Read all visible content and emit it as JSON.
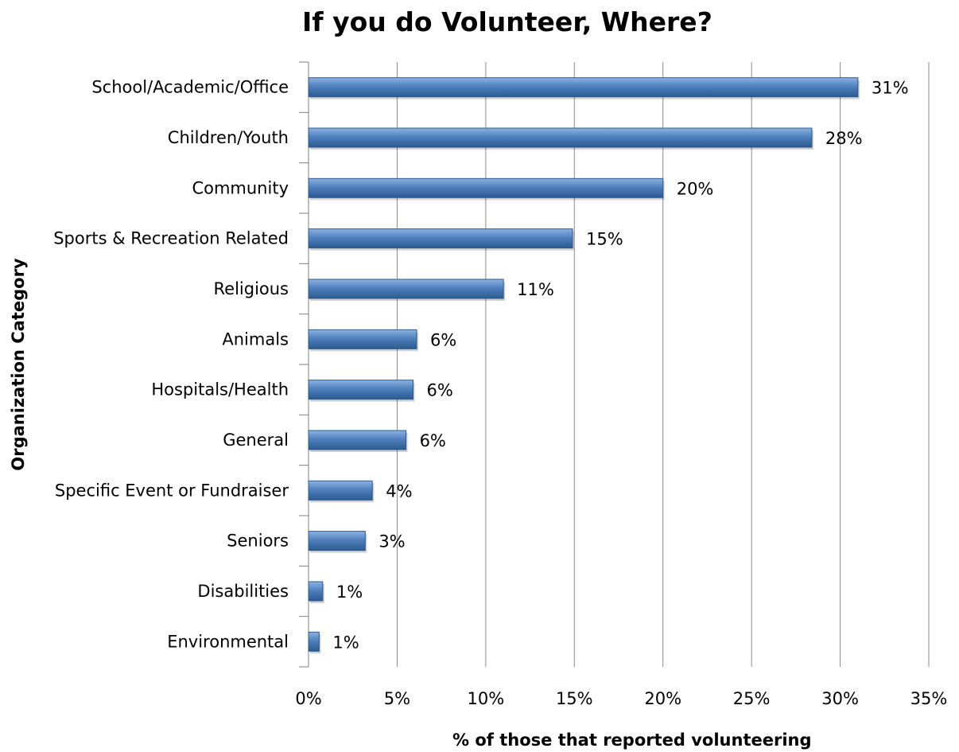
{
  "colors": {
    "bar": "#4f81bd",
    "bar_light": "#8db3e2",
    "bar_dark": "#2c5a8f",
    "gridline": "#8c8c8c",
    "axis": "#7f7f7f"
  },
  "chart_data": {
    "type": "bar",
    "orientation": "horizontal",
    "title": "If you do Volunteer, Where?",
    "xlabel": "% of those that reported volunteering",
    "ylabel": "Organization Category",
    "categories": [
      "School/Academic/Office",
      "Children/Youth",
      "Community",
      "Sports & Recreation Related",
      "Religious",
      "Animals",
      "Hospitals/Health",
      "General",
      "Specific Event or Fundraiser",
      "Seniors",
      "Disabilities",
      "Environmental"
    ],
    "values": [
      31,
      28.4,
      20,
      14.9,
      11,
      6.1,
      5.9,
      5.5,
      3.6,
      3.2,
      0.8,
      0.6
    ],
    "data_labels": [
      "31%",
      "28%",
      "20%",
      "15%",
      "11%",
      "6%",
      "6%",
      "6%",
      "4%",
      "3%",
      "1%",
      "1%"
    ],
    "xticks": [
      0,
      5,
      10,
      15,
      20,
      25,
      30,
      35
    ],
    "xtick_labels": [
      "0%",
      "5%",
      "10%",
      "15%",
      "20%",
      "25%",
      "30%",
      "35%"
    ],
    "xlim": [
      0,
      35
    ],
    "grid": true,
    "legend": "none"
  }
}
